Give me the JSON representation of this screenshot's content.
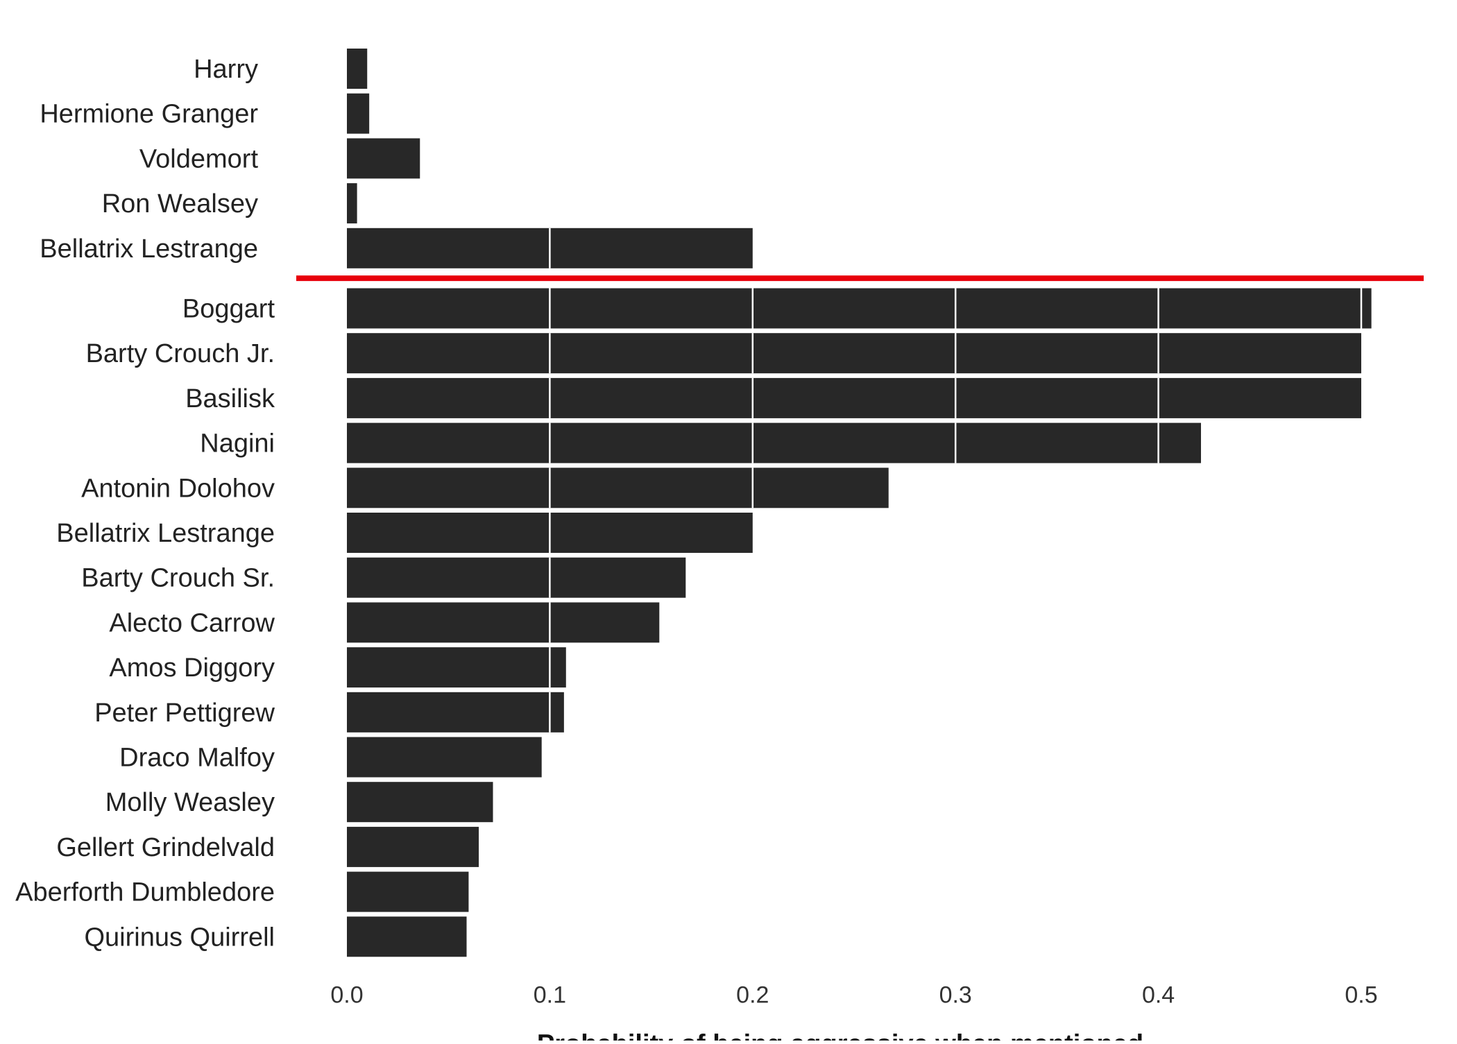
{
  "colors": {
    "bar": "#282828",
    "grid": "#ffffff",
    "highlight_line": "#e8000b",
    "background": "#ffffff"
  },
  "chart_data": {
    "type": "bar",
    "orientation": "horizontal",
    "xlabel": "Probability of being aggressive when mentioned",
    "ylabel": "",
    "xlim": [
      0,
      0.5
    ],
    "x_ticks": [
      "0.0",
      "0.1",
      "0.2",
      "0.3",
      "0.4",
      "0.5"
    ],
    "x_tick_values": [
      0,
      0.1,
      0.2,
      0.3,
      0.4,
      0.5
    ],
    "grid": "vertical white lines overlaid on bars",
    "groups": [
      {
        "name": "reference",
        "categories": [
          "Harry",
          "Hermione Granger",
          "Voldemort",
          "Ron Wealsey",
          "Bellatrix Lestrange"
        ],
        "values": [
          0.01,
          0.011,
          0.036,
          0.005,
          0.2
        ]
      },
      {
        "name": "ranked",
        "categories": [
          "Boggart",
          "Barty Crouch Jr.",
          "Basilisk",
          "Nagini",
          "Antonin Dolohov",
          "Bellatrix Lestrange",
          "Barty Crouch Sr.",
          "Alecto Carrow",
          "Amos Diggory",
          "Peter Pettigrew",
          "Draco Malfoy",
          "Molly Weasley",
          "Gellert Grindelvald",
          "Aberforth Dumbledore",
          "Quirinus Quirrell"
        ],
        "values": [
          0.505,
          0.5,
          0.5,
          0.421,
          0.267,
          0.2,
          0.167,
          0.154,
          0.108,
          0.107,
          0.096,
          0.072,
          0.065,
          0.06,
          0.059
        ]
      }
    ],
    "annotation": "horizontal red separator line between the reference group and the ranked group"
  }
}
